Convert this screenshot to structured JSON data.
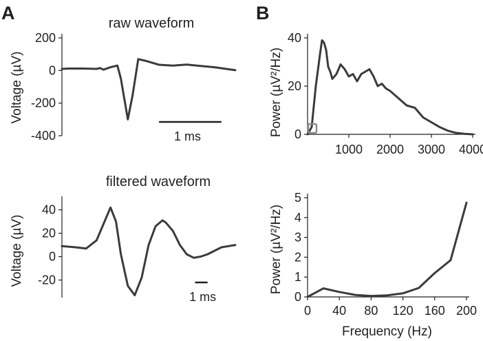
{
  "panels": {
    "a_letter": "A",
    "b_letter": "B"
  },
  "chart_data": [
    {
      "id": "raw",
      "type": "line",
      "title": "raw waveform",
      "xlabel": "",
      "ylabel": "Voltage (µV)",
      "ylim": [
        -400,
        200
      ],
      "yticks": [
        "200",
        "0",
        "-200",
        "-400"
      ],
      "ytick_values": [
        200,
        0,
        -200,
        -400
      ],
      "xlim": [
        0,
        2.5
      ],
      "scalebar": {
        "label": "1 ms",
        "start": 1.4,
        "length": 0.9
      },
      "x": [
        0,
        0.1,
        0.3,
        0.5,
        0.55,
        0.6,
        0.7,
        0.8,
        0.85,
        0.95,
        1.02,
        1.1,
        1.2,
        1.4,
        1.6,
        1.8,
        2.0,
        2.2,
        2.5
      ],
      "values": [
        10,
        12,
        12,
        10,
        15,
        5,
        20,
        30,
        -50,
        -300,
        -150,
        70,
        60,
        35,
        30,
        36,
        28,
        20,
        2
      ]
    },
    {
      "id": "spectrum_full",
      "type": "line",
      "title": "",
      "xlabel": "",
      "ylabel": "Power (µV²/Hz)",
      "ylim": [
        0,
        40
      ],
      "yticks": [
        "0",
        "20",
        "40"
      ],
      "ytick_values": [
        0,
        20,
        40
      ],
      "xlim": [
        0,
        4000
      ],
      "xticks": [
        "1000",
        "2000",
        "3000",
        "4000"
      ],
      "xtick_values": [
        1000,
        2000,
        3000,
        4000
      ],
      "x": [
        0,
        100,
        200,
        300,
        350,
        400,
        450,
        500,
        550,
        600,
        700,
        800,
        900,
        1000,
        1100,
        1200,
        1300,
        1400,
        1500,
        1600,
        1700,
        1800,
        1900,
        2000,
        2200,
        2400,
        2600,
        2800,
        3000,
        3200,
        3400,
        3600,
        3800,
        4000
      ],
      "values": [
        0,
        3,
        20,
        33,
        39,
        38,
        35,
        28,
        26,
        23,
        25,
        29,
        27,
        24,
        25,
        22,
        25,
        26,
        27,
        24,
        20,
        21,
        19,
        18,
        15,
        12,
        11,
        7,
        5,
        3,
        1.5,
        0.6,
        0.2,
        0
      ],
      "highlight_range": [
        0,
        200
      ]
    },
    {
      "id": "filtered",
      "type": "line",
      "title": "filtered waveform",
      "xlabel": "",
      "ylabel": "Voltage (µV)",
      "ylim": [
        -35,
        48
      ],
      "yticks": [
        "40",
        "20",
        "0",
        "-20"
      ],
      "ytick_values": [
        40,
        20,
        0,
        -20
      ],
      "xlim": [
        0,
        2.5
      ],
      "scalebar": {
        "label": "1 ms",
        "start": 1.92,
        "length": 0.18
      },
      "x": [
        0,
        0.2,
        0.35,
        0.5,
        0.6,
        0.7,
        0.78,
        0.85,
        0.95,
        1.05,
        1.15,
        1.25,
        1.35,
        1.45,
        1.5,
        1.6,
        1.7,
        1.8,
        1.9,
        2.0,
        2.1,
        2.2,
        2.3,
        2.4,
        2.5
      ],
      "values": [
        9,
        8,
        7,
        14,
        28,
        42,
        30,
        2,
        -25,
        -33,
        -18,
        10,
        26,
        31,
        29,
        22,
        10,
        2,
        -1,
        0,
        2,
        5,
        8,
        9,
        10
      ]
    },
    {
      "id": "spectrum_low",
      "type": "line",
      "title": "",
      "xlabel": "Frequency (Hz)",
      "ylabel": "Power (µV²/Hz)",
      "ylim": [
        0,
        5
      ],
      "yticks": [
        "0",
        "1",
        "2",
        "3",
        "4",
        "5"
      ],
      "ytick_values": [
        0,
        1,
        2,
        3,
        4,
        5
      ],
      "xlim": [
        0,
        200
      ],
      "xticks": [
        "0",
        "40",
        "80",
        "120",
        "160",
        "200"
      ],
      "xtick_values": [
        0,
        40,
        80,
        120,
        160,
        200
      ],
      "x": [
        0,
        20,
        40,
        60,
        80,
        100,
        120,
        140,
        160,
        180,
        200
      ],
      "values": [
        0,
        0.43,
        0.25,
        0.1,
        0.05,
        0.08,
        0.18,
        0.45,
        1.2,
        1.85,
        4.75
      ]
    }
  ]
}
